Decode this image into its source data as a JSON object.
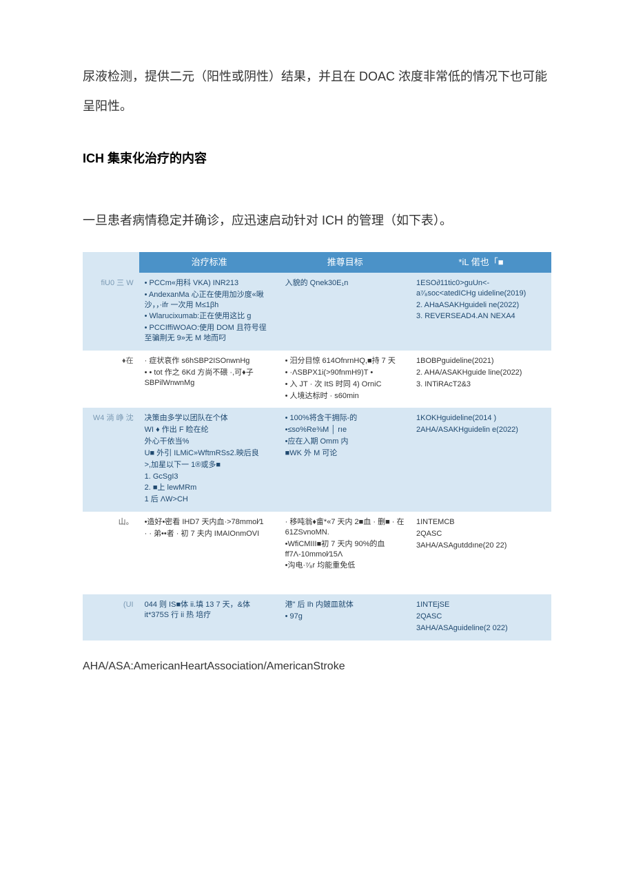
{
  "intro_para": "尿液检测，提供二元（阳性或阴性）结果，并且在 DOAC 浓度非常低的情况下也可能呈阳性。",
  "section_title": "ICH 集束化治疗的内容",
  "lead_para": "一旦患者病情稳定并确诊，应迅速启动针对 ICH 的管理（如下表）。",
  "table": {
    "headers": {
      "h0": "",
      "h1": "治疗标准",
      "h2": "推尊目标",
      "h3": "*iL 偌也「■"
    },
    "rows": [
      {
        "band": "blue",
        "c0": "fiU0 三 W",
        "c1": [
          "• PCCm«用科 VKA) INR213",
          "• AndexanMa 心正在使用加沙度«啾沙，，·ifr 一次用 M≤1βh",
          "• Wlarucixumab:正在使用这比 g",
          "• PCCIffiWOAO:使用 DOM 且符号徎至骗荆无 9»无 M 地而叼"
        ],
        "c2": [
          "入貌的 Qnek30E₁n"
        ],
        "c3": [
          "1ESO∂11tic0>guUn<- a⁷⁄₈soc<atedICHg uideline(2019)",
          "2. AHaASAKHguideli ne(2022)",
          "3. REVERSEAD4.AN NEXA4"
        ]
      },
      {
        "band": "white",
        "c0": "♦在",
        "c1": [
          "· 症状哀作 s6hSBP2ISOnwnHg",
          "• • tot 作之 6Kd 方尚不碨 ·,可♦子 SBPilWnwnMg"
        ],
        "c2": [
          "• 汨分目惊 614OfnrnHQ,■持 7 天",
          "• ·ΛSBPX1i(>90fnmH9)T •",
          "• 入 JT · 次 ItS 时同 4) OrniC",
          "• 人境达标时 · s60min"
        ],
        "c3": [
          "1BOBPguideline(2021)",
          "2. AHA/ASAKHguide line(2022)",
          "3. INTiRAcT2&3"
        ]
      },
      {
        "band": "blue",
        "c0": "W4 淌 峥 沈",
        "c1": [
          "决策由多学以团队在个体",
          "WI ♦ 作出 F 睑在纶",
          "外心干依当%",
          "U■ 外引 ILMiC»WftmRSs2.映后良",
          ">,加星以下一 1®或多■",
          "1. GcSgI3",
          "2. ■上 lewMRm",
          "1 后 ΛW>CH"
        ],
        "c2": [
          "• 100%将含干拥际-的",
          " ",
          "•≤so%Re⅜M │ rıe",
          "•应在入期 Omm 内",
          "■WK 外 M 可论"
        ],
        "c3": [
          "1KOKHguideline(2014 )",
          "2AHA/ASAKHguidelin e(2022)"
        ]
      },
      {
        "band": "white",
        "c0": "山。",
        "c1": [
          "•造好•密看 IHD7 天内血·>78mmol∕1",
          "· · 弟••者 · 初 7 夫内 IMAIOnmOVI"
        ],
        "c2": [
          "· 移吨翁♦畲*«7 天内 2■血 · 删■ · 在 61ZSvnoMN.",
          "•WfiCMIII■初 7 天内 90%的血 ff7Λ-10mmol∕15Λ",
          "•沟电·⁷⁄₈r 均能重免低"
        ],
        "c3": [
          "1INTEMCB",
          "2QASC",
          "3AHA/ASAgutddıne(20 22)"
        ]
      },
      {
        "band": "blue",
        "c0": "(UI",
        "c1": [
          "044 则 IS■体 ii.填 13 7 天，&体 it*375S 行 ii 热 培疗"
        ],
        "c2": [
          "港\" 后 Ih 内皴皿就体",
          "• 97g"
        ],
        "c3": [
          "1INTEjSE",
          "2QASC",
          "3AHA/ASAguideline(2 022)"
        ]
      }
    ]
  },
  "footnote": "AHA/ASA:AmericanHeartAssociation/AmericanStroke",
  "colors": {
    "header_bg": "#4b92c8",
    "header_text": "#ffffff",
    "band_blue_bg": "#d7e7f3",
    "band_blue_text": "#204a70",
    "band_white_bg": "#ffffff",
    "band_white_text": "#333333",
    "body_text": "#333333"
  }
}
